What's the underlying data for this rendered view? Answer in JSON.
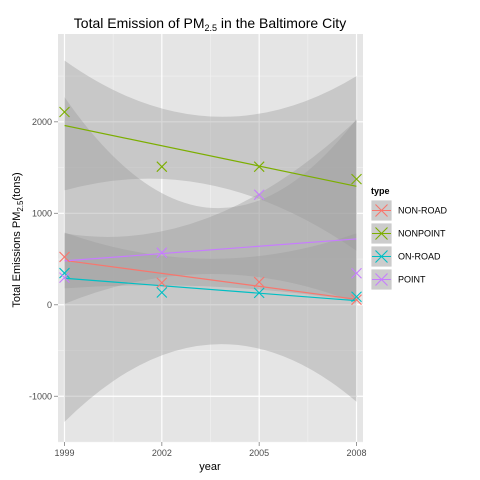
{
  "chart_data": {
    "type": "scatter",
    "title": {
      "prefix": "Total Emission of PM",
      "subscript": "2.5",
      "suffix": " in the Baltimore City"
    },
    "xlabel": "year",
    "ylabel": {
      "prefix": "Total Emissions PM",
      "subscript": "2.5",
      "suffix": "(tons)"
    },
    "x_ticks": [
      1999,
      2002,
      2005,
      2008
    ],
    "y_ticks": [
      -1000,
      0,
      1000,
      2000
    ],
    "xlim": [
      1998.8,
      2008.2
    ],
    "ylim": [
      -1500,
      2960
    ],
    "grid": true,
    "legend": {
      "title": "type",
      "placement": "right"
    },
    "series": [
      {
        "name": "NON-ROAD",
        "color": "#F8766D",
        "x": [
          1999,
          2002,
          2005,
          2008
        ],
        "y": [
          522.9,
          240.8,
          248.9,
          55.8
        ],
        "fit": {
          "y_start": 485,
          "y_end": 60,
          "band_low": [
            180,
            40
          ],
          "band_high": [
            790,
            780
          ]
        }
      },
      {
        "name": "NONPOINT",
        "color": "#7CAE00",
        "x": [
          1999,
          2002,
          2005,
          2008
        ],
        "y": [
          2107.6,
          1509.5,
          1509.5,
          1373.2
        ],
        "fit": {
          "y_start": 1960,
          "y_end": 1295,
          "band_low": [
            1250,
            590
          ],
          "band_high": [
            2670,
            2500
          ]
        }
      },
      {
        "name": "ON-ROAD",
        "color": "#00BFC4",
        "x": [
          1999,
          2002,
          2005,
          2008
        ],
        "y": [
          346.8,
          134.3,
          130.4,
          88.3
        ],
        "fit": {
          "y_start": 290,
          "y_end": 45,
          "band_low": [
            -1280,
            -1060
          ],
          "band_high": [
            2270,
            2030
          ]
        }
      },
      {
        "name": "POINT",
        "color": "#C77CFF",
        "x": [
          1999,
          2002,
          2005,
          2008
        ],
        "y": [
          296.8,
          569.3,
          1202.5,
          344.98
        ],
        "fit": {
          "y_start": 480,
          "y_end": 720,
          "band_low": [
            10,
            20
          ],
          "band_high": [
            780,
            2020
          ]
        }
      }
    ]
  }
}
